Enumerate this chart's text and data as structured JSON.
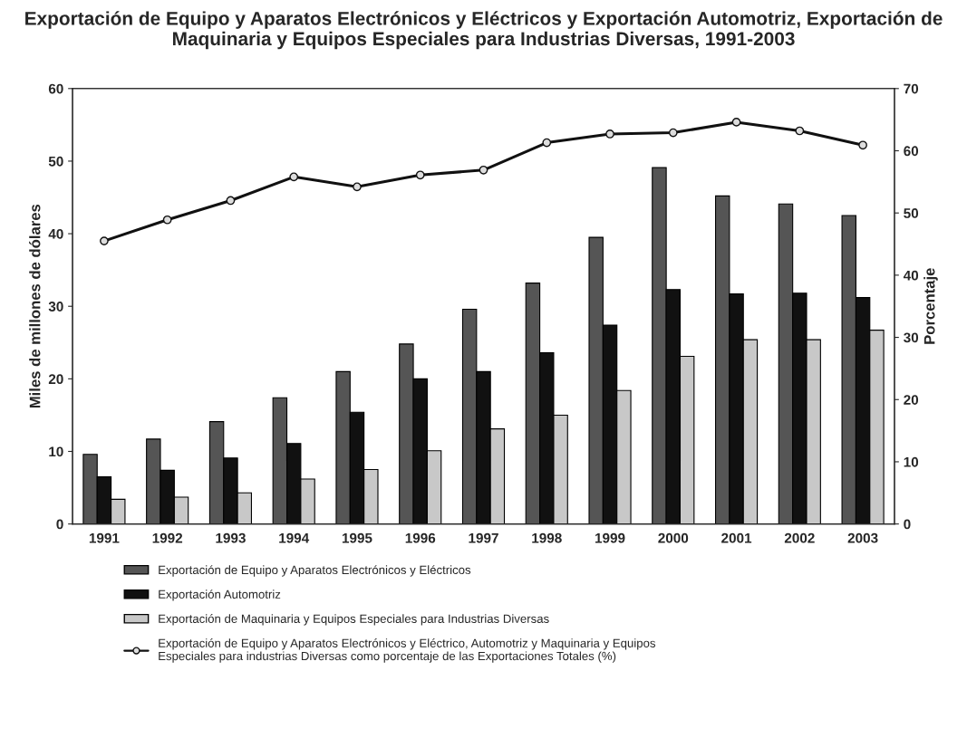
{
  "chart_data": {
    "type": "bar",
    "title": "Exportación de Equipo y Aparatos Electrónicos y Eléctricos y Exportación Automotriz, Exportación de Maquinaria y Equipos Especiales para Industrias Diversas, 1991-2003",
    "ylabel": "Miles de millones de dólares",
    "y2label": "Porcentaje",
    "categories": [
      "1991",
      "1992",
      "1993",
      "1994",
      "1995",
      "1996",
      "1997",
      "1998",
      "1999",
      "2000",
      "2001",
      "2002",
      "2003"
    ],
    "series": [
      {
        "name": "Exportación de Equipo y Aparatos Electrónicos y Eléctricos",
        "color": "#555555",
        "values": [
          9.6,
          11.7,
          14.1,
          17.4,
          21.0,
          24.8,
          29.6,
          33.2,
          39.5,
          49.1,
          45.2,
          44.1,
          42.5
        ]
      },
      {
        "name": "Exportación Automotriz",
        "color": "#111111",
        "values": [
          6.5,
          7.4,
          9.1,
          11.1,
          15.4,
          20.0,
          21.0,
          23.6,
          27.4,
          32.3,
          31.7,
          31.8,
          31.2
        ]
      },
      {
        "name": "Exportación de Maquinaria y Equipos Especiales para Industrias Diversas",
        "color": "#c8c8c8",
        "values": [
          3.4,
          3.7,
          4.3,
          6.2,
          7.5,
          10.1,
          13.1,
          15.0,
          18.4,
          23.1,
          25.4,
          25.4,
          26.7
        ]
      },
      {
        "name": "Exportación de Equipo y Aparatos Electrónicos y Eléctrico, Automotriz y Maquinaria y Equipos Especiales para industrias Diversas como porcentaje de las Exportaciones Totales (%)",
        "type": "line",
        "axis": "y2",
        "color": "#111111",
        "marker": "circle",
        "values": [
          45.5,
          48.9,
          52.0,
          55.8,
          54.2,
          56.1,
          56.9,
          61.3,
          62.7,
          62.9,
          64.6,
          63.2,
          60.9
        ]
      }
    ],
    "ylim": [
      0,
      60
    ],
    "yticks": [
      0,
      10,
      20,
      30,
      40,
      50,
      60
    ],
    "y2lim": [
      0,
      70
    ],
    "y2ticks": [
      0,
      10,
      20,
      30,
      40,
      50,
      60,
      70
    ],
    "grid": false,
    "legend": "bottom"
  }
}
